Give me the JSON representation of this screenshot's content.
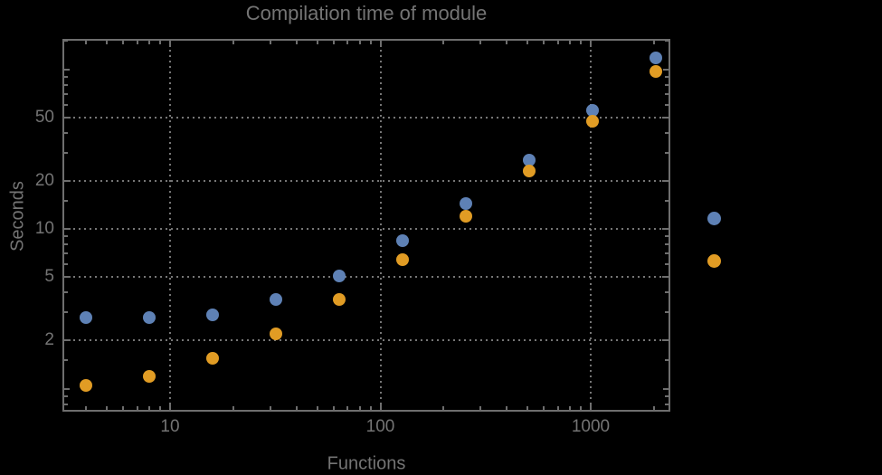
{
  "page": {
    "background": "#000000"
  },
  "style": {
    "text_color": "#747474",
    "frame_color": "#6e6e6e",
    "grid_color": "#767676",
    "background": "#000000",
    "series_blue": "#5e81b5",
    "series_orange": "#e19c24"
  },
  "chart_data": {
    "type": "scatter",
    "title": "Compilation time of module",
    "xlabel": "Functions",
    "ylabel": "Seconds",
    "x_scale": "log",
    "y_scale": "log",
    "xlim": [
      3.1,
      2380
    ],
    "ylim": [
      0.72,
      155
    ],
    "grid": "dotted gridlines at labeled major ticks only",
    "x": [
      4,
      8,
      16,
      32,
      64,
      128,
      256,
      512,
      1024,
      2048
    ],
    "series": [
      {
        "name": "blue",
        "color": "#5e81b5",
        "values": [
          2.8,
          2.8,
          2.9,
          3.6,
          5.1,
          8.4,
          14.5,
          27,
          55,
          118
        ]
      },
      {
        "name": "orange",
        "color": "#e19c24",
        "values": [
          1.05,
          1.2,
          1.55,
          2.2,
          3.6,
          6.4,
          12,
          23,
          47,
          97
        ]
      }
    ],
    "x_ticks": {
      "major": [
        10,
        100,
        1000
      ],
      "major_labels": [
        "10",
        "100",
        "1000"
      ],
      "minor": [
        4,
        5,
        6,
        7,
        8,
        9,
        20,
        30,
        40,
        50,
        60,
        70,
        80,
        90,
        200,
        300,
        400,
        500,
        600,
        700,
        800,
        900,
        2000
      ]
    },
    "y_ticks": {
      "major": [
        2,
        5,
        10,
        20,
        50
      ],
      "major_labels": [
        "2",
        "5",
        "10",
        "20",
        "50"
      ],
      "unlabeled_major": [
        1,
        100
      ],
      "minor": [
        0.8,
        0.9,
        1.5,
        3,
        4,
        6,
        7,
        8,
        9,
        15,
        30,
        40,
        60,
        70,
        80,
        90,
        150
      ]
    },
    "legend": {
      "position": "outside-right",
      "labels_visible": false,
      "markers": [
        {
          "name": "blue",
          "color": "#5e81b5"
        },
        {
          "name": "orange",
          "color": "#e19c24"
        }
      ]
    }
  }
}
